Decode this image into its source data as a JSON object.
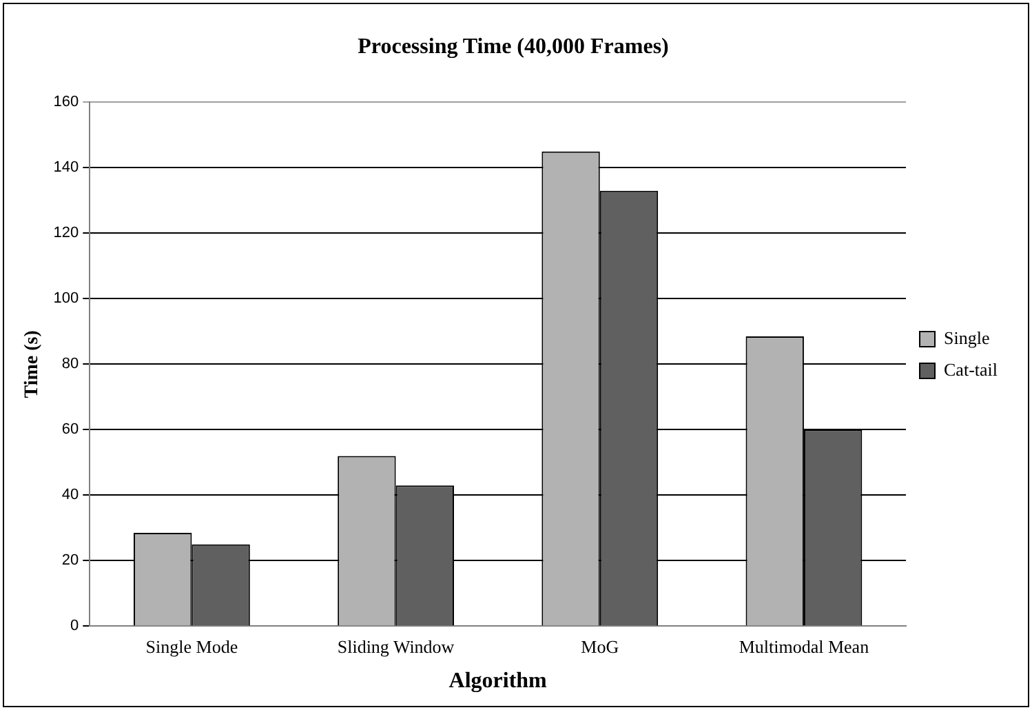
{
  "chart_data": {
    "type": "bar",
    "title": "Processing Time (40,000 Frames)",
    "xlabel": "Algorithm",
    "ylabel": "Time (s)",
    "categories": [
      "Single Mode",
      "Sliding Window",
      "MoG",
      "Multimodal Mean"
    ],
    "series": [
      {
        "name": "Single",
        "color": "#b2b2b2",
        "values": [
          28.5,
          52,
          145,
          88.5
        ]
      },
      {
        "name": "Cat-tail",
        "color": "#606060",
        "values": [
          25,
          43,
          133,
          60
        ]
      }
    ],
    "ylim": [
      0,
      160
    ],
    "yticks": [
      0,
      20,
      40,
      60,
      80,
      100,
      120,
      140,
      160
    ],
    "grid": "y",
    "legend": "right"
  }
}
